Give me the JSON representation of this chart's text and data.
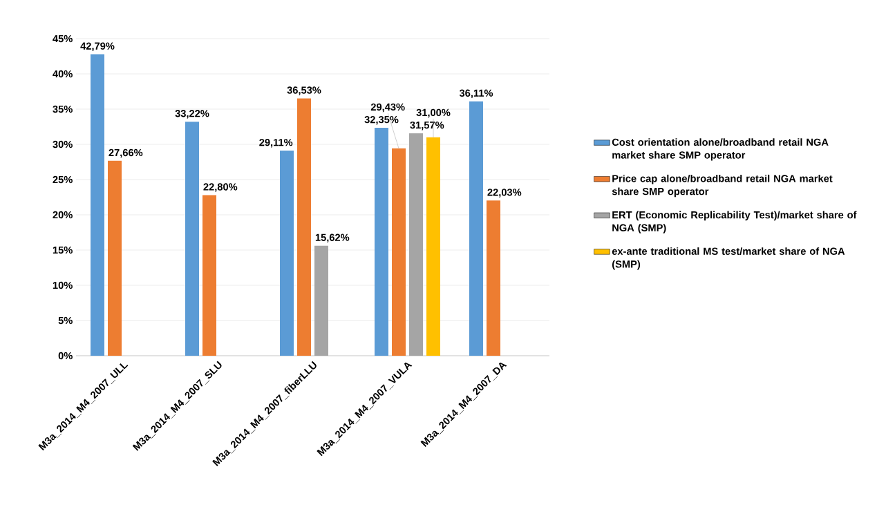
{
  "chart_data": {
    "type": "bar",
    "categories": [
      "M3a_2014_M4_2007_ULL",
      "M3a_2014_M4_2007_SLU",
      "M3a_2014_M4_2007_fiberLLU",
      "M3a_2014_M4_2007_VULA",
      "M3a_2014_M4_2007_DA"
    ],
    "ylim": [
      0,
      45
    ],
    "yticks": [
      {
        "value": 0,
        "label": "0%"
      },
      {
        "value": 5,
        "label": "5%"
      },
      {
        "value": 10,
        "label": "10%"
      },
      {
        "value": 15,
        "label": "15%"
      },
      {
        "value": 20,
        "label": "20%"
      },
      {
        "value": 25,
        "label": "25%"
      },
      {
        "value": 30,
        "label": "30%"
      },
      {
        "value": 35,
        "label": "35%"
      },
      {
        "value": 40,
        "label": "40%"
      },
      {
        "value": 45,
        "label": "45%"
      }
    ],
    "grid": "y",
    "legend": "right",
    "series": [
      {
        "name": "Cost orientation alone/broadband retail NGA market share SMP operator",
        "color": "#5b9bd5",
        "values": [
          42.79,
          33.22,
          29.11,
          32.35,
          36.11
        ],
        "value_labels": [
          "42,79%",
          "33,22%",
          "29,11%",
          "32,35%",
          "36,11%"
        ]
      },
      {
        "name": "Price cap alone/broadband retail NGA market share SMP operator",
        "color": "#ed7d31",
        "values": [
          27.66,
          22.8,
          36.53,
          29.43,
          22.03
        ],
        "value_labels": [
          "27,66%",
          "22,80%",
          "36,53%",
          "29,43%",
          "22,03%"
        ]
      },
      {
        "name": "ERT (Economic Replicability Test)/market share of NGA (SMP)",
        "color": "#a5a5a5",
        "values": [
          null,
          null,
          15.62,
          31.57,
          null
        ],
        "value_labels": [
          null,
          null,
          "15,62%",
          "31,57%",
          null
        ]
      },
      {
        "name": "ex-ante traditional MS test/market share of NGA (SMP)",
        "color": "#ffc000",
        "values": [
          null,
          null,
          null,
          31.0,
          null
        ],
        "value_labels": [
          null,
          null,
          null,
          "31,00%",
          null
        ]
      }
    ]
  }
}
